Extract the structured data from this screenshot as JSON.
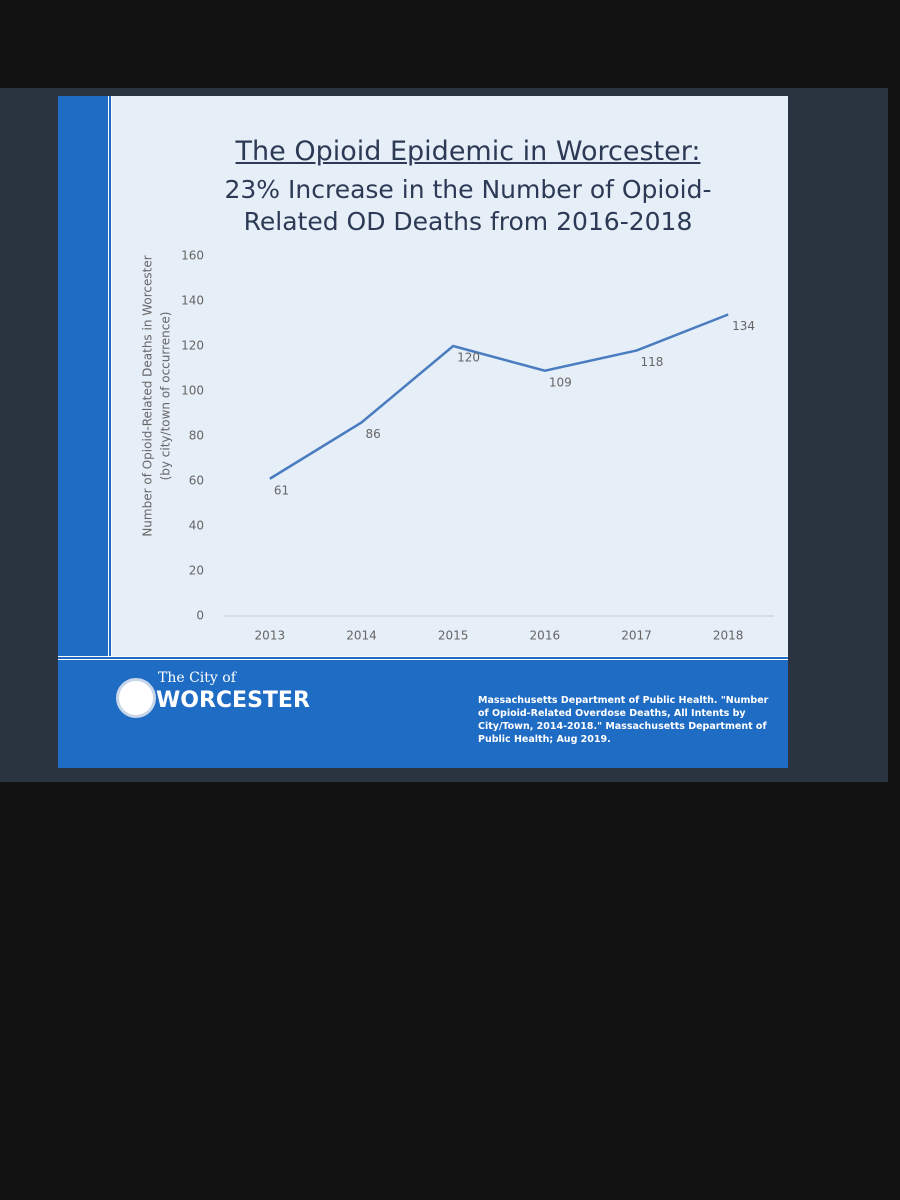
{
  "chart_data": {
    "type": "line",
    "title": "The Opioid Epidemic in Worcester:",
    "subtitle": "23% Increase in the Number of Opioid-Related OD Deaths from 2016-2018",
    "ylabel": "Number of Opioid-Related Deaths in Worcester",
    "ylabel_note": "(by city/town of occurrence)",
    "categories": [
      "2013",
      "2014",
      "2015",
      "2016",
      "2017",
      "2018"
    ],
    "values": [
      61,
      86,
      120,
      109,
      118,
      134
    ],
    "color": "#4a7cc0",
    "ylim": [
      0,
      160
    ],
    "yticks": [
      0,
      20,
      40,
      60,
      80,
      100,
      120,
      140,
      160
    ],
    "grid": false
  },
  "footer": {
    "city_prefix": "The City of",
    "city": "WORCESTER",
    "source": "Massachusetts Department of Public Health. \"Number of Opioid-Related Overdose Deaths, All Intents by City/Town, 2014-2018.\" Massachusetts Department of Public Health; Aug 2019."
  }
}
